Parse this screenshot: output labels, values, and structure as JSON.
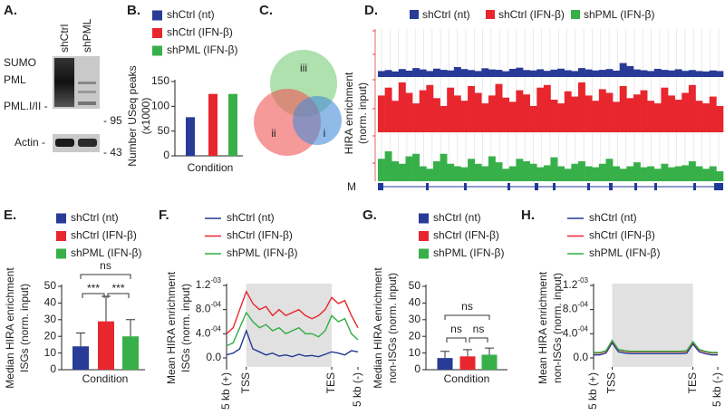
{
  "blot": {
    "panel_label": "A.",
    "lanes": [
      "shCtrl",
      "shPML"
    ],
    "bands": [
      "SUMO",
      "PML",
      "PML.I/II -",
      "Actin -"
    ],
    "markers": [
      "- 95",
      "- 43"
    ]
  },
  "venn": {
    "panel_label": "C.",
    "regions": [
      "iii",
      "ii",
      "i"
    ]
  },
  "tracks": {
    "panel_label": "D.",
    "y_label": [
      "HIRA enrichment",
      "(norm. input)"
    ],
    "gene": "M",
    "series": [
      {
        "name": "shCtrl (nt)",
        "color": "#283b97",
        "values": [
          30,
          35,
          28,
          40,
          32,
          45,
          38,
          30,
          42,
          36,
          33,
          50,
          40,
          35,
          30,
          44,
          38,
          36,
          29,
          41,
          47,
          35,
          33,
          39,
          31,
          37,
          42,
          34,
          30,
          45,
          38,
          33,
          36,
          40,
          32,
          70,
          55,
          38,
          34,
          30,
          41,
          36,
          33,
          39,
          31,
          35,
          30,
          28,
          33,
          30
        ]
      },
      {
        "name": "shCtrl (IFN-β)",
        "color": "#e8262e",
        "values": [
          70,
          85,
          60,
          95,
          75,
          55,
          80,
          90,
          65,
          50,
          85,
          70,
          60,
          88,
          75,
          55,
          70,
          92,
          66,
          58,
          80,
          72,
          50,
          85,
          90,
          62,
          55,
          78,
          68,
          95,
          70,
          60,
          82,
          75,
          58,
          88,
          65,
          72,
          80,
          60,
          55,
          85,
          70,
          62,
          75,
          90,
          60,
          55,
          68,
          50
        ]
      },
      {
        "name": "shPML (IFN-β)",
        "color": "#38b04a",
        "values": [
          45,
          60,
          40,
          35,
          50,
          55,
          30,
          25,
          40,
          55,
          35,
          30,
          28,
          45,
          35,
          30,
          50,
          38,
          25,
          30,
          45,
          40,
          35,
          28,
          32,
          48,
          30,
          25,
          35,
          40,
          30,
          28,
          35,
          45,
          30,
          25,
          30,
          38,
          28,
          30,
          25,
          35,
          28,
          30,
          32,
          40,
          30,
          25,
          30,
          20
        ]
      }
    ]
  },
  "chart_data": [
    {
      "panel_label": "B.",
      "type": "bar",
      "y_label": [
        "Number USeq peaks",
        "(x1000)"
      ],
      "x_label": "Condition",
      "ylim": [
        0,
        150
      ],
      "yticks": [
        0,
        50,
        100,
        150
      ],
      "series": [
        {
          "name": "shCtrl (nt)",
          "color": "#283b97",
          "values": [
            78
          ]
        },
        {
          "name": "shCtrl (IFN-β)",
          "color": "#e8262e",
          "values": [
            125
          ]
        },
        {
          "name": "shPML (IFN-β)",
          "color": "#38b04a",
          "values": [
            125
          ]
        }
      ]
    },
    {
      "panel_label": "E.",
      "type": "bar",
      "y_label": [
        "Median HIRA enrichment",
        "ISGs (norm. input)"
      ],
      "x_label": "Condition",
      "ylim": [
        0,
        50
      ],
      "yticks": [
        0,
        10,
        20,
        30,
        40,
        50
      ],
      "annotations": [
        "ns",
        "***",
        "***"
      ],
      "series": [
        {
          "name": "shCtrl (nt)",
          "color": "#283b97",
          "values": [
            14
          ],
          "errors": [
            8
          ]
        },
        {
          "name": "shCtrl (IFN-β)",
          "color": "#e8262e",
          "values": [
            29
          ],
          "errors": [
            15
          ]
        },
        {
          "name": "shPML (IFN-β)",
          "color": "#38b04a",
          "values": [
            20
          ],
          "errors": [
            10
          ]
        }
      ]
    },
    {
      "panel_label": "F.",
      "type": "line",
      "y_label": [
        "Mean HIRA enrichment",
        "ISGs (norm. input)"
      ],
      "shaded": true,
      "x": [
        0,
        5,
        10,
        15,
        20,
        25,
        30,
        35,
        40,
        45,
        50,
        55,
        60,
        65,
        70,
        75,
        80,
        85,
        90,
        95,
        100
      ],
      "xlim": [
        0,
        100
      ],
      "xticks": [
        {
          "value": 0,
          "label": "5 kb (+)"
        },
        {
          "value": 15,
          "label": "TSS"
        },
        {
          "value": 80,
          "label": "TES"
        },
        {
          "value": 100,
          "label": "5 kb (-)"
        }
      ],
      "ylim": [
        -0.00015,
        0.0012
      ],
      "yticks": [
        {
          "value": 0,
          "label": "0.0"
        },
        {
          "value": 0.0004,
          "label": "4.0-04"
        },
        {
          "value": 0.0008,
          "label": "8.0-04"
        },
        {
          "value": 0.0012,
          "label": "1.2-03"
        }
      ],
      "series": [
        {
          "name": "shCtrl (nt)",
          "color": "#233a8f",
          "values": [
            5e-05,
            8e-05,
            0.00015,
            0.00045,
            0.00015,
            0.0001,
            5e-05,
            8e-05,
            3e-05,
            5e-05,
            2e-05,
            6e-05,
            3e-05,
            4e-05,
            2e-05,
            6e-05,
            0.0001,
            8e-05,
            5e-05,
            0.00012,
            0.0001
          ]
        },
        {
          "name": "shCtrl (IFN-β)",
          "color": "#e8262e",
          "values": [
            0.0004,
            0.0005,
            0.0008,
            0.0011,
            0.0009,
            0.0008,
            0.00085,
            0.0007,
            0.0008,
            0.0007,
            0.00075,
            0.0008,
            0.0007,
            0.00065,
            0.0007,
            0.0008,
            0.001,
            0.0009,
            0.00095,
            0.0007,
            0.0005
          ]
        },
        {
          "name": "shPML (IFN-β)",
          "color": "#2fae44",
          "values": [
            0.0002,
            0.00025,
            0.0005,
            0.00075,
            0.0006,
            0.0005,
            0.00055,
            0.00045,
            0.0005,
            0.0004,
            0.00045,
            0.0005,
            0.0004,
            0.0004,
            0.00035,
            0.00045,
            0.0007,
            0.0006,
            0.00065,
            0.0004,
            0.0003
          ]
        }
      ]
    },
    {
      "panel_label": "G.",
      "type": "bar",
      "y_label": [
        "Median HIRA enrichment",
        "non-ISGs (norm. input)"
      ],
      "x_label": "Condition",
      "ylim": [
        0,
        50
      ],
      "yticks": [
        0,
        10,
        20,
        30,
        40,
        50
      ],
      "annotations": [
        "ns",
        "ns",
        "ns"
      ],
      "series": [
        {
          "name": "shCtrl (nt)",
          "color": "#283b97",
          "values": [
            7
          ],
          "errors": [
            4
          ]
        },
        {
          "name": "shCtrl (IFN-β)",
          "color": "#e8262e",
          "values": [
            8
          ],
          "errors": [
            4
          ]
        },
        {
          "name": "shPML (IFN-β)",
          "color": "#38b04a",
          "values": [
            9
          ],
          "errors": [
            4
          ]
        }
      ]
    },
    {
      "panel_label": "H.",
      "type": "line",
      "y_label": [
        "Mean HIRA enrichment",
        "non-ISGs (norm. input)"
      ],
      "shaded": true,
      "x": [
        0,
        5,
        10,
        15,
        20,
        25,
        30,
        35,
        40,
        45,
        50,
        55,
        60,
        65,
        70,
        75,
        80,
        85,
        90,
        95,
        100
      ],
      "xlim": [
        0,
        100
      ],
      "xticks": [
        {
          "value": 0,
          "label": "5 kb (+)"
        },
        {
          "value": 15,
          "label": "TSS"
        },
        {
          "value": 80,
          "label": "TES"
        },
        {
          "value": 100,
          "label": "5 kb (-)"
        }
      ],
      "ylim": [
        -0.00015,
        0.0012
      ],
      "yticks": [
        {
          "value": 0,
          "label": "0.0"
        },
        {
          "value": 0.0004,
          "label": "4.0-04"
        },
        {
          "value": 0.0008,
          "label": "8.0-04"
        },
        {
          "value": 0.0012,
          "label": "1.2-03"
        }
      ],
      "series": [
        {
          "name": "shCtrl (nt)",
          "color": "#233a8f",
          "values": [
            5e-05,
            5e-05,
            8e-05,
            0.00025,
            0.0001,
            8e-05,
            7e-05,
            7e-05,
            7e-05,
            7e-05,
            7e-05,
            7e-05,
            7e-05,
            7e-05,
            7e-05,
            8e-05,
            0.00023,
            0.0001,
            7e-05,
            5e-05,
            5e-05
          ]
        },
        {
          "name": "shCtrl (IFN-β)",
          "color": "#e8262e",
          "values": [
            8e-05,
            8e-05,
            0.00011,
            0.00028,
            0.00013,
            0.00011,
            0.0001,
            0.0001,
            0.0001,
            0.0001,
            0.0001,
            0.0001,
            0.0001,
            0.0001,
            0.0001,
            0.00011,
            0.00026,
            0.00013,
            0.0001,
            8e-05,
            8e-05
          ]
        },
        {
          "name": "shPML (IFN-β)",
          "color": "#2fae44",
          "values": [
            9e-05,
            9e-05,
            0.00012,
            0.00029,
            0.00014,
            0.00012,
            0.00011,
            0.00011,
            0.00011,
            0.00011,
            0.00011,
            0.00011,
            0.00011,
            0.00011,
            0.00011,
            0.00012,
            0.00027,
            0.00014,
            0.00011,
            9e-05,
            9e-05
          ]
        }
      ]
    }
  ]
}
